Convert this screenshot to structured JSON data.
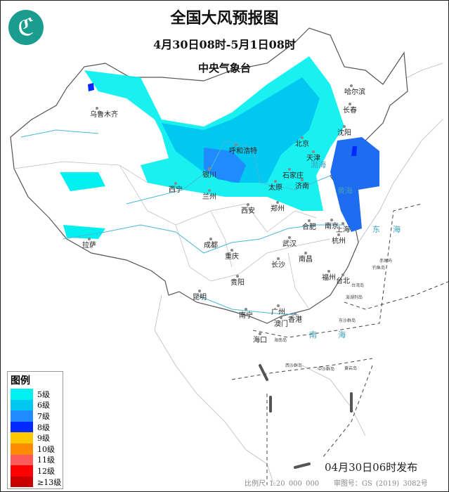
{
  "header": {
    "title": "全国大风预报图",
    "period": "4月30日08时-5月1日08时",
    "agency": "中央气象台"
  },
  "logo": {
    "icon": "cma-logo",
    "color": "#1a9c8f"
  },
  "legend": {
    "title": "图例",
    "items": [
      {
        "label": "5级",
        "color": "#00f0f0"
      },
      {
        "label": "6级",
        "color": "#00c8f0"
      },
      {
        "label": "7级",
        "color": "#1e8cff"
      },
      {
        "label": "8级",
        "color": "#0028ff"
      },
      {
        "label": "9级",
        "color": "#ffc800"
      },
      {
        "label": "10级",
        "color": "#ff8c00"
      },
      {
        "label": "11级",
        "color": "#ff5a5a"
      },
      {
        "label": "12级",
        "color": "#ff0000"
      },
      {
        "label": "≥13级",
        "color": "#c80000"
      }
    ]
  },
  "cities": [
    "乌鲁木齐",
    "哈尔滨",
    "长春",
    "沈阳",
    "北京",
    "天津",
    "呼和浩特",
    "银川",
    "石家庄",
    "太原",
    "济南",
    "西宁",
    "兰州",
    "西安",
    "郑州",
    "合肥",
    "南京",
    "上海",
    "杭州",
    "拉萨",
    "成都",
    "重庆",
    "武汉",
    "长沙",
    "南昌",
    "福州",
    "台北",
    "贵阳",
    "昆明",
    "南宁",
    "广州",
    "澳门",
    "香港",
    "海口"
  ],
  "seas": [
    "渤海",
    "黄海",
    "东海",
    "南海"
  ],
  "islands": [
    "海南岛",
    "台湾岛",
    "东沙群岛",
    "西沙群岛",
    "中沙群岛",
    "黄岩岛",
    "钓鱼岛",
    "赤尾屿",
    "澎湖列岛"
  ],
  "footer": {
    "issued": "04月30日06时发布",
    "scale": "比例尺 1:20 000 000",
    "approval": "审图号：GS (2019) 3082号"
  }
}
